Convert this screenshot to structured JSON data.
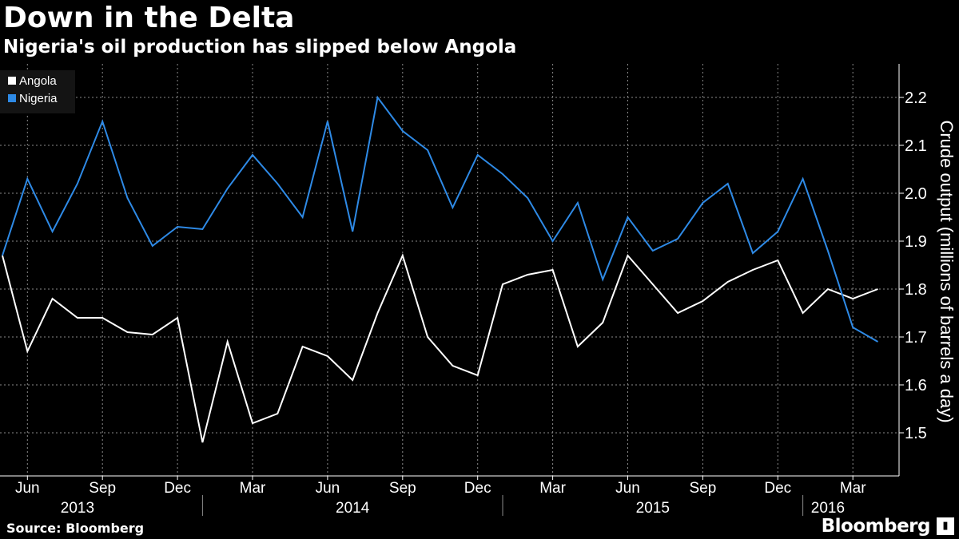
{
  "header": {
    "title": "Down in the Delta",
    "subtitle": "Nigeria's oil production has slipped below Angola"
  },
  "footer": {
    "source": "Source: Bloomberg",
    "brand": "Bloomberg",
    "brand_mark_icon": "bloomberg-terminal-icon"
  },
  "chart_data": {
    "type": "line",
    "ylabel": "Crude output (millions of barrels a day)",
    "ylim": [
      1.41,
      2.27
    ],
    "y_ticks": [
      1.5,
      1.6,
      1.7,
      1.8,
      1.9,
      2.0,
      2.1,
      2.2
    ],
    "grid": true,
    "legend_position": "top-left",
    "x": [
      "2013-05",
      "2013-06",
      "2013-07",
      "2013-08",
      "2013-09",
      "2013-10",
      "2013-11",
      "2013-12",
      "2014-01",
      "2014-02",
      "2014-03",
      "2014-04",
      "2014-05",
      "2014-06",
      "2014-07",
      "2014-08",
      "2014-09",
      "2014-10",
      "2014-11",
      "2014-12",
      "2015-01",
      "2015-02",
      "2015-03",
      "2015-04",
      "2015-05",
      "2015-06",
      "2015-07",
      "2015-08",
      "2015-09",
      "2015-10",
      "2015-11",
      "2015-12",
      "2016-01",
      "2016-02",
      "2016-03",
      "2016-04"
    ],
    "month_ticks": [
      {
        "month": "2013-06",
        "label": "Jun"
      },
      {
        "month": "2013-09",
        "label": "Sep"
      },
      {
        "month": "2013-12",
        "label": "Dec"
      },
      {
        "month": "2014-03",
        "label": "Mar"
      },
      {
        "month": "2014-06",
        "label": "Jun"
      },
      {
        "month": "2014-09",
        "label": "Sep"
      },
      {
        "month": "2014-12",
        "label": "Dec"
      },
      {
        "month": "2015-03",
        "label": "Mar"
      },
      {
        "month": "2015-06",
        "label": "Jun"
      },
      {
        "month": "2015-09",
        "label": "Sep"
      },
      {
        "month": "2015-12",
        "label": "Dec"
      },
      {
        "month": "2016-03",
        "label": "Mar"
      }
    ],
    "year_labels": [
      {
        "label": "2013",
        "center": "2013-08",
        "divider_after": "2014-01"
      },
      {
        "label": "2014",
        "center": "2014-07",
        "divider_after": "2015-01"
      },
      {
        "label": "2015",
        "center": "2015-07",
        "divider_after": "2016-01"
      },
      {
        "label": "2016",
        "center": "2016-02"
      }
    ],
    "series": [
      {
        "name": "Angola",
        "color": "#ffffff",
        "values": [
          1.87,
          1.67,
          1.78,
          1.74,
          1.74,
          1.71,
          1.705,
          1.74,
          1.48,
          1.69,
          1.52,
          1.54,
          1.68,
          1.66,
          1.61,
          1.75,
          1.87,
          1.7,
          1.64,
          1.62,
          1.81,
          1.83,
          1.84,
          1.68,
          1.73,
          1.87,
          1.81,
          1.75,
          1.775,
          1.815,
          1.84,
          1.86,
          1.75,
          1.8,
          1.78,
          1.8
        ]
      },
      {
        "name": "Nigeria",
        "color": "#2e8ae6",
        "values": [
          1.87,
          2.03,
          1.92,
          2.02,
          2.15,
          1.99,
          1.89,
          1.93,
          1.925,
          2.01,
          2.08,
          2.02,
          1.95,
          2.15,
          1.92,
          2.2,
          2.13,
          2.09,
          1.97,
          2.08,
          2.04,
          1.99,
          1.9,
          1.98,
          1.82,
          1.95,
          1.88,
          1.905,
          1.98,
          2.02,
          1.875,
          1.92,
          2.03,
          1.88,
          1.72,
          1.69
        ]
      }
    ]
  }
}
